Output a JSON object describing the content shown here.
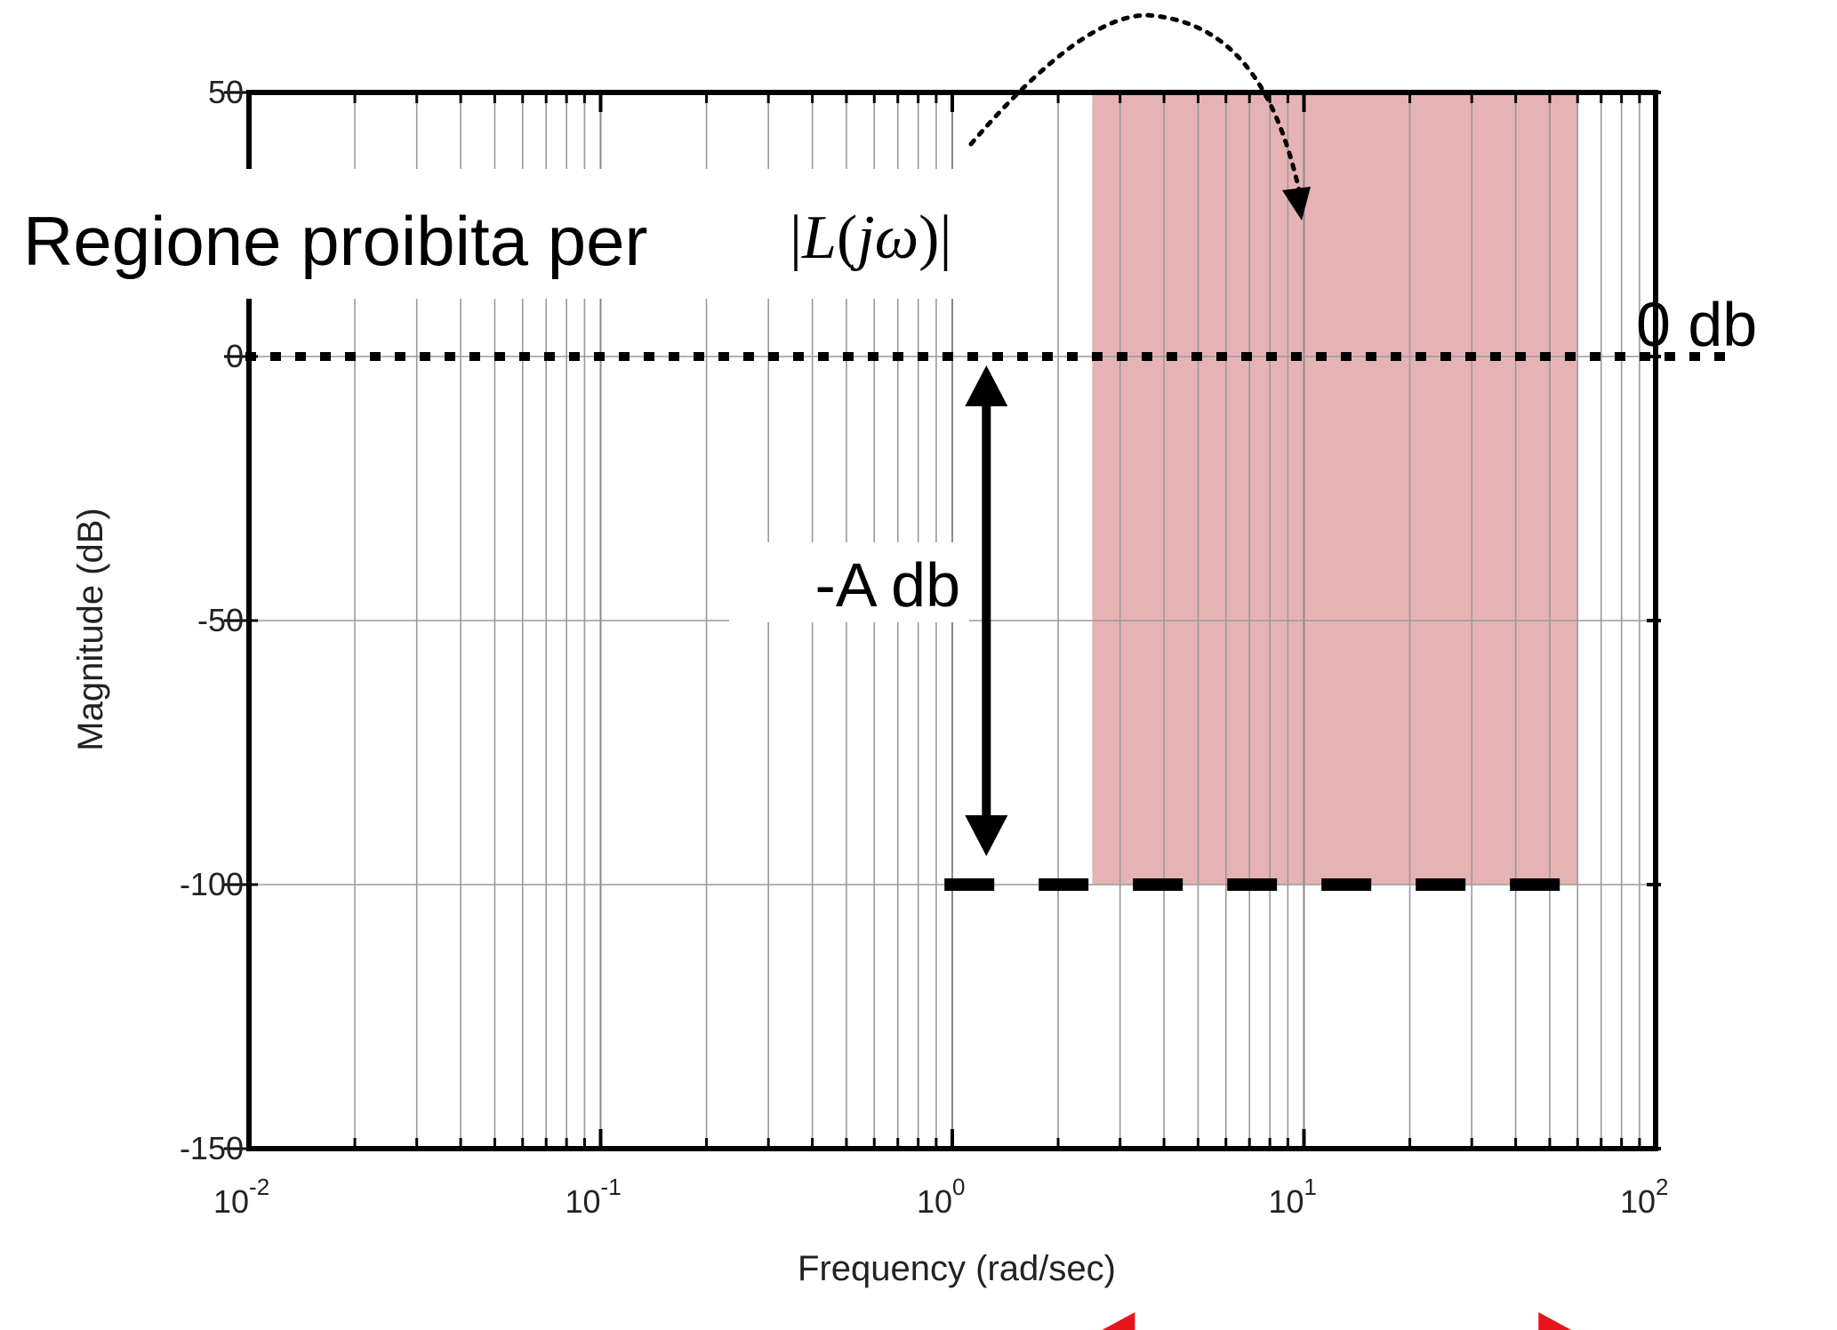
{
  "chart_data": {
    "type": "line",
    "xscale": "log",
    "xlim": [
      0.01,
      100
    ],
    "ylim": [
      -150,
      50
    ],
    "grid": true,
    "xlabel": "Frequency (rad/sec)",
    "ylabel": "Magnitude (dB)",
    "x_ticks": [
      {
        "value": 0.01,
        "base": "10",
        "exp": "-2"
      },
      {
        "value": 0.1,
        "base": "10",
        "exp": "-1"
      },
      {
        "value": 1,
        "base": "10",
        "exp": "0"
      },
      {
        "value": 10,
        "base": "10",
        "exp": "1"
      },
      {
        "value": 100,
        "base": "10",
        "exp": "2"
      }
    ],
    "y_ticks": [
      {
        "value": 50,
        "label": "50"
      },
      {
        "value": 0,
        "label": "0"
      },
      {
        "value": -50,
        "label": "-50"
      },
      {
        "value": -100,
        "label": "-100"
      },
      {
        "value": -150,
        "label": "-150"
      }
    ],
    "forbidden_region": {
      "x_from": 2.5,
      "x_to": 60,
      "y_from": -100,
      "y_to": 50,
      "color": "#e6b3b4"
    },
    "zero_line": {
      "y": 0,
      "x_from": 0.01,
      "x_to": 110,
      "label": "0 db"
    },
    "level_line": {
      "y": -100,
      "x_from": 0.95,
      "x_to": 60
    },
    "span_arrow": {
      "x": 1.25,
      "y_from": 0,
      "y_to": -100,
      "label": "-A db"
    },
    "band_arrow": {
      "x_from": 2.5,
      "x_to": 60,
      "color": "#e8141c"
    },
    "title_text": "Regione proibita per",
    "title_math": {
      "open_bar": "|",
      "L": "L",
      "lp": "(",
      "j": "j",
      "omega": "ω",
      "rp": ")",
      "close_bar": "|"
    }
  }
}
